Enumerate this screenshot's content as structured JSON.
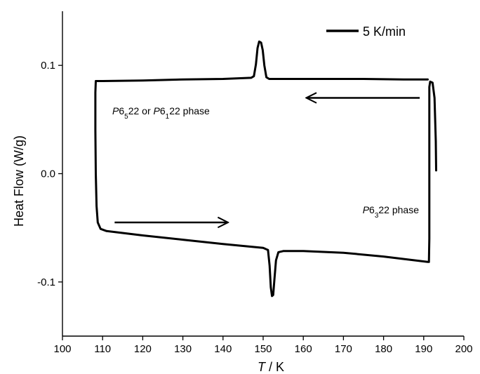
{
  "chart_data": {
    "type": "line",
    "title": "",
    "xlabel": {
      "italic": "T",
      "rest": " / K"
    },
    "ylabel": "Heat Flow (W/g)",
    "xlim": [
      100,
      200
    ],
    "ylim": [
      -0.15,
      0.15
    ],
    "x_ticks": [
      100,
      110,
      120,
      130,
      140,
      150,
      160,
      170,
      180,
      190,
      200
    ],
    "x_tick_labels": [
      "100",
      "110",
      "120",
      "130",
      "140",
      "150",
      "160",
      "170",
      "180",
      "190",
      "200"
    ],
    "y_ticks": [
      -0.1,
      0.0,
      0.1
    ],
    "y_tick_labels": [
      "-0.1",
      "0.0",
      "0.1"
    ],
    "grid": false,
    "scale_bar": {
      "label": "5 K/min"
    },
    "annotations": [
      {
        "parts": [
          {
            "t": "P",
            "i": true
          },
          {
            "t": "6"
          },
          {
            "t": "5",
            "s": true
          },
          {
            "t": "22 or "
          },
          {
            "t": "P",
            "i": true
          },
          {
            "t": "6"
          },
          {
            "t": "1",
            "s": true
          },
          {
            "t": "22 phase"
          }
        ]
      },
      {
        "parts": [
          {
            "t": "P",
            "i": true
          },
          {
            "t": "6"
          },
          {
            "t": "3",
            "s": true
          },
          {
            "t": "22 phase"
          }
        ]
      }
    ],
    "arrows": [
      {
        "direction": "left",
        "from": [
          189,
          0.07
        ],
        "to": [
          161,
          0.07
        ]
      },
      {
        "direction": "right",
        "from": [
          113,
          -0.045
        ],
        "to": [
          141,
          -0.045
        ]
      }
    ],
    "series": [
      {
        "points": [
          [
            191,
            0.087
          ],
          [
            185,
            0.087
          ],
          [
            175,
            0.0875
          ],
          [
            165,
            0.0875
          ],
          [
            158,
            0.0875
          ],
          [
            151.5,
            0.0875
          ],
          [
            150.8,
            0.089
          ],
          [
            150.3,
            0.1
          ],
          [
            149.9,
            0.114
          ],
          [
            149.5,
            0.121
          ],
          [
            149.0,
            0.122
          ],
          [
            148.6,
            0.116
          ],
          [
            148.2,
            0.101
          ],
          [
            147.7,
            0.09
          ],
          [
            147.0,
            0.0885
          ],
          [
            140,
            0.0875
          ],
          [
            130,
            0.087
          ],
          [
            120,
            0.086
          ],
          [
            110,
            0.0855
          ],
          [
            108.3,
            0.0855
          ],
          [
            108.2,
            0.075
          ],
          [
            108.2,
            0.04
          ],
          [
            108.3,
            0.0
          ],
          [
            108.5,
            -0.03
          ],
          [
            108.8,
            -0.045
          ],
          [
            109.5,
            -0.051
          ],
          [
            111,
            -0.053
          ],
          [
            120,
            -0.057
          ],
          [
            130,
            -0.061
          ],
          [
            140,
            -0.065
          ],
          [
            150,
            -0.0685
          ],
          [
            151.2,
            -0.0705
          ],
          [
            151.6,
            -0.085
          ],
          [
            151.9,
            -0.105
          ],
          [
            152.2,
            -0.113
          ],
          [
            152.5,
            -0.112
          ],
          [
            152.8,
            -0.098
          ],
          [
            153.2,
            -0.08
          ],
          [
            153.8,
            -0.0725
          ],
          [
            155,
            -0.0715
          ],
          [
            160,
            -0.0715
          ],
          [
            170,
            -0.073
          ],
          [
            180,
            -0.0765
          ],
          [
            191,
            -0.0815
          ],
          [
            191.3,
            -0.0815
          ],
          [
            191.4,
            -0.06
          ],
          [
            191.4,
            0.06
          ],
          [
            191.4,
            0.08
          ],
          [
            191.6,
            0.085
          ],
          [
            192.2,
            0.084
          ],
          [
            192.7,
            0.07
          ],
          [
            193.0,
            0.03
          ],
          [
            193.1,
            0.003
          ]
        ]
      }
    ]
  }
}
